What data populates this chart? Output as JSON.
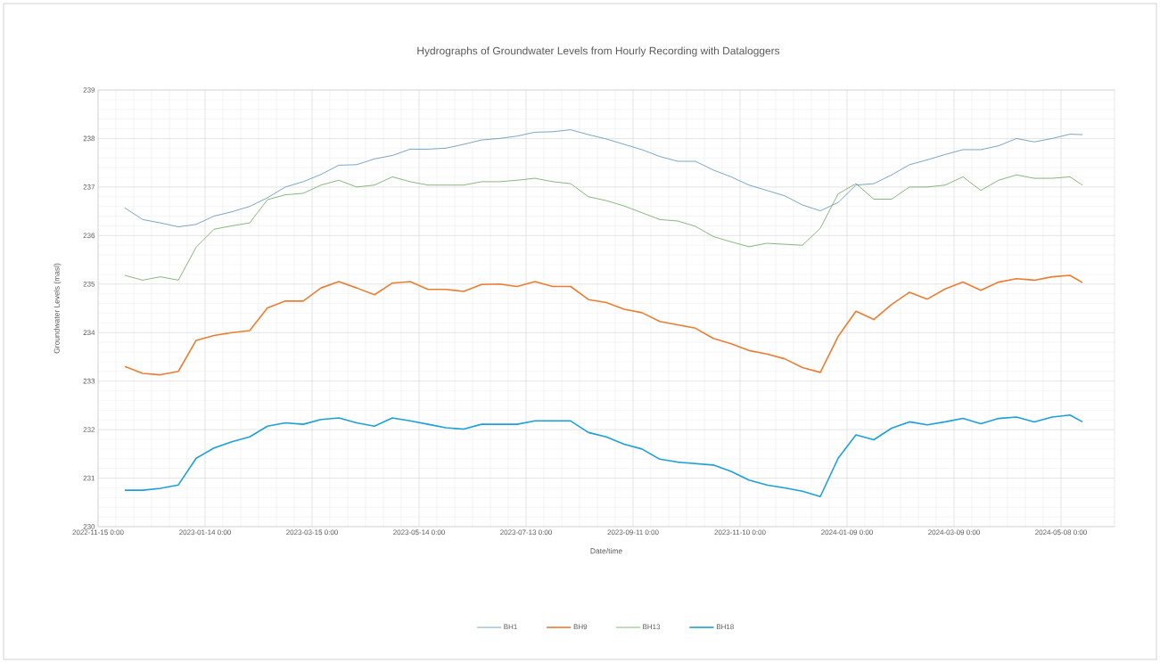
{
  "chart_data": {
    "type": "line",
    "title": "Hydrographs of Groundwater Levels from Hourly Recording with Dataloggers",
    "xlabel": "Date/time",
    "ylabel": "Groundwater Levels (masl)",
    "x": [
      "2022-11-30",
      "2022-12-10",
      "2022-12-20",
      "2022-12-30",
      "2023-01-09",
      "2023-01-19",
      "2023-01-29",
      "2023-02-08",
      "2023-02-18",
      "2023-02-28",
      "2023-03-10",
      "2023-03-20",
      "2023-03-30",
      "2023-04-09",
      "2023-04-19",
      "2023-04-29",
      "2023-05-09",
      "2023-05-19",
      "2023-05-29",
      "2023-06-08",
      "2023-06-18",
      "2023-06-28",
      "2023-07-08",
      "2023-07-18",
      "2023-07-28",
      "2023-08-07",
      "2023-08-17",
      "2023-08-27",
      "2023-09-06",
      "2023-09-16",
      "2023-09-26",
      "2023-10-06",
      "2023-10-16",
      "2023-10-26",
      "2023-11-05",
      "2023-11-15",
      "2023-11-25",
      "2023-12-05",
      "2023-12-15",
      "2023-12-25",
      "2024-01-04",
      "2024-01-14",
      "2024-01-24",
      "2024-02-03",
      "2024-02-13",
      "2024-02-23",
      "2024-03-04",
      "2024-03-14",
      "2024-03-24",
      "2024-04-03",
      "2024-04-13",
      "2024-04-23",
      "2024-05-03",
      "2024-05-13",
      "2024-05-20"
    ],
    "series": [
      {
        "name": "BH1",
        "color": "#5b8fb5",
        "values": [
          236.57,
          236.33,
          236.26,
          236.18,
          236.23,
          236.4,
          236.49,
          236.6,
          236.78,
          237.0,
          237.11,
          237.26,
          237.45,
          237.46,
          237.58,
          237.65,
          237.78,
          237.78,
          237.8,
          237.88,
          237.97,
          238.0,
          238.05,
          238.13,
          238.14,
          238.18,
          238.08,
          237.99,
          237.88,
          237.77,
          237.63,
          237.53,
          237.53,
          237.35,
          237.21,
          237.04,
          236.93,
          236.82,
          236.63,
          236.51,
          236.68,
          237.04,
          237.07,
          237.25,
          237.46,
          237.56,
          237.67,
          237.77,
          237.77,
          237.85,
          238.0,
          237.93,
          238.0,
          238.09,
          238.08
        ]
      },
      {
        "name": "BH9",
        "color": "#ed7d31",
        "values": [
          233.3,
          233.16,
          233.13,
          233.2,
          233.84,
          233.94,
          234.0,
          234.04,
          234.51,
          234.65,
          234.65,
          234.92,
          235.05,
          234.92,
          234.78,
          235.02,
          235.05,
          234.89,
          234.89,
          234.85,
          234.99,
          235.0,
          234.95,
          235.05,
          234.95,
          234.95,
          234.68,
          234.62,
          234.48,
          234.41,
          234.23,
          234.16,
          234.09,
          233.88,
          233.77,
          233.63,
          233.56,
          233.46,
          233.28,
          233.18,
          233.92,
          234.44,
          234.27,
          234.58,
          234.83,
          234.69,
          234.9,
          235.04,
          234.87,
          235.04,
          235.11,
          235.08,
          235.15,
          235.18,
          235.03
        ]
      },
      {
        "name": "BH13",
        "color": "#6aa65a",
        "values": [
          235.18,
          235.08,
          235.15,
          235.08,
          235.76,
          236.13,
          236.2,
          236.26,
          236.74,
          236.84,
          236.87,
          237.04,
          237.14,
          237.0,
          237.04,
          237.21,
          237.11,
          237.04,
          237.04,
          237.04,
          237.11,
          237.11,
          237.14,
          237.18,
          237.11,
          237.07,
          236.8,
          236.72,
          236.61,
          236.47,
          236.33,
          236.3,
          236.19,
          235.98,
          235.87,
          235.77,
          235.84,
          235.82,
          235.8,
          236.15,
          236.86,
          237.07,
          236.75,
          236.75,
          237.0,
          237.0,
          237.04,
          237.21,
          236.93,
          237.14,
          237.25,
          237.18,
          237.18,
          237.21,
          237.04
        ]
      },
      {
        "name": "BH18",
        "color": "#1ca0dc",
        "values": [
          230.75,
          230.75,
          230.79,
          230.86,
          231.41,
          231.62,
          231.75,
          231.85,
          232.07,
          232.14,
          232.11,
          232.21,
          232.24,
          232.14,
          232.07,
          232.24,
          232.18,
          232.11,
          232.04,
          232.01,
          232.11,
          232.11,
          232.11,
          232.18,
          232.18,
          232.18,
          231.94,
          231.85,
          231.7,
          231.6,
          231.39,
          231.33,
          231.3,
          231.27,
          231.14,
          230.96,
          230.86,
          230.8,
          230.73,
          230.62,
          231.41,
          231.89,
          231.79,
          232.03,
          232.16,
          232.1,
          232.16,
          232.23,
          232.12,
          232.23,
          232.26,
          232.16,
          232.26,
          232.3,
          232.16
        ]
      }
    ],
    "xlim": [
      "2022-11-15",
      "2024-06-07"
    ],
    "xticks": [
      {
        "value": "2022-11-15",
        "label": "2022-11-15 0:00"
      },
      {
        "value": "2023-01-14",
        "label": "2023-01-14 0:00"
      },
      {
        "value": "2023-03-15",
        "label": "2023-03-15 0:00"
      },
      {
        "value": "2023-05-14",
        "label": "2023-05-14 0:00"
      },
      {
        "value": "2023-07-13",
        "label": "2023-07-13 0:00"
      },
      {
        "value": "2023-09-11",
        "label": "2023-09-11 0:00"
      },
      {
        "value": "2023-11-10",
        "label": "2023-11-10 0:00"
      },
      {
        "value": "2024-01-09",
        "label": "2024-01-09 0:00"
      },
      {
        "value": "2024-03-09",
        "label": "2024-03-09 0:00"
      },
      {
        "value": "2024-05-08",
        "label": "2024-05-08 0:00"
      }
    ],
    "ylim": [
      230,
      239
    ],
    "yticks": [
      230,
      231,
      232,
      233,
      234,
      235,
      236,
      237,
      238,
      239
    ],
    "grid": true,
    "legend": "bottom",
    "marker": "none",
    "line_style": "solid"
  }
}
